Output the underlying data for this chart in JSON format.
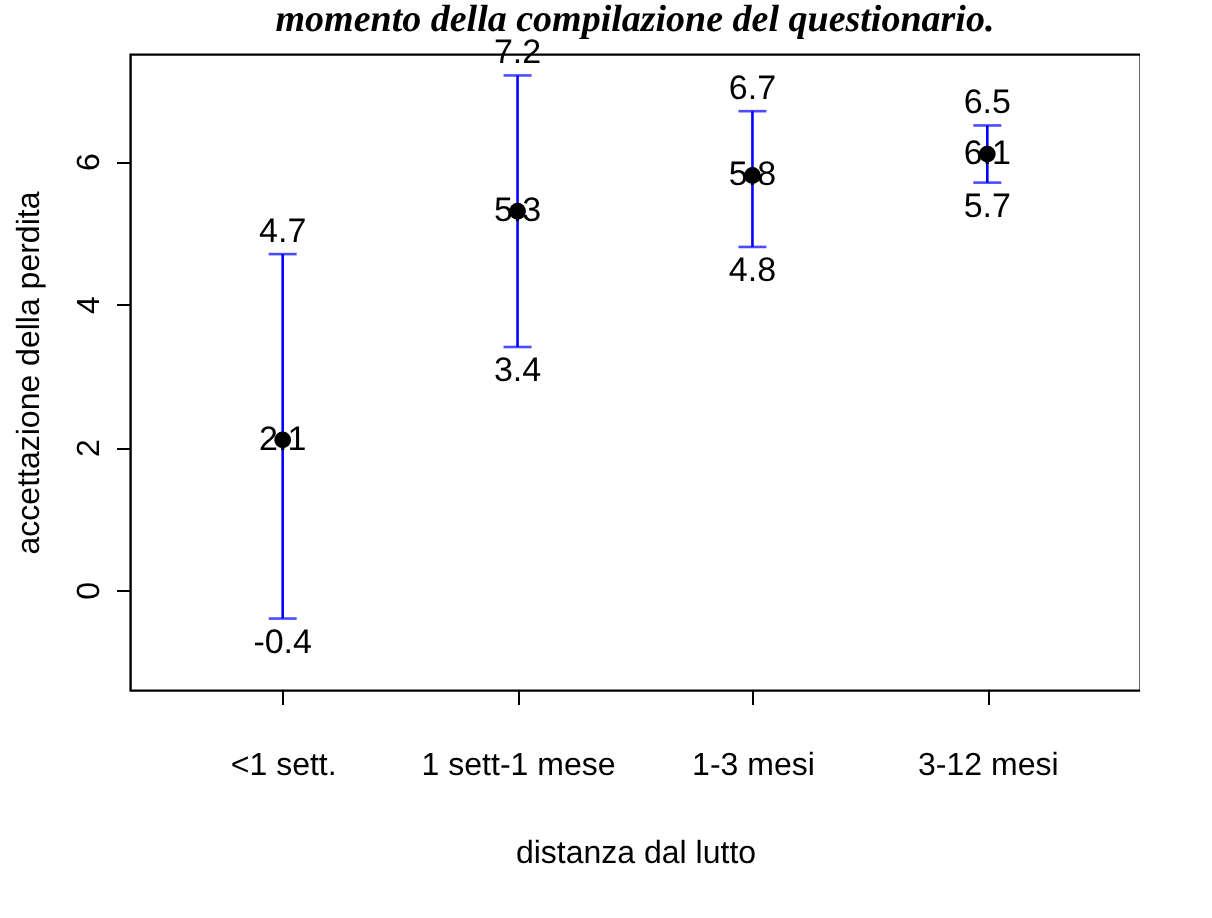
{
  "chart_data": {
    "type": "scatter",
    "title": "momento della compilazione del questionario.",
    "xlabel": "distanza dal lutto",
    "ylabel": "accettazione della perdita",
    "categories": [
      "<1 sett.",
      "1 sett-1 mese",
      "1-3 mesi",
      "3-12 mesi"
    ],
    "values": [
      2.1,
      5.3,
      5.8,
      6.1
    ],
    "errors": [
      [
        -0.4,
        4.7
      ],
      [
        3.4,
        7.2
      ],
      [
        4.8,
        6.7
      ],
      [
        5.7,
        6.5
      ]
    ],
    "color": "#000000",
    "marker": "circle",
    "data_labels": true,
    "annotations": [
      {
        "text": "4.7",
        "x": "<1 sett.",
        "y": 4.7
      },
      {
        "text": "-0.4",
        "x": "<1 sett.",
        "y": -0.4
      },
      {
        "text": "7.2",
        "x": "1 sett-1 mese",
        "y": 7.2
      },
      {
        "text": "3.4",
        "x": "1 sett-1 mese",
        "y": 3.4
      },
      {
        "text": "6.7",
        "x": "1-3 mesi",
        "y": 6.7
      },
      {
        "text": "4.8",
        "x": "1-3 mesi",
        "y": 4.8
      },
      {
        "text": "6.5",
        "x": "3-12 mesi",
        "y": 6.5
      },
      {
        "text": "5.7",
        "x": "3-12 mesi",
        "y": 5.7
      }
    ],
    "ylim": [
      -1.4,
      7.5
    ],
    "yticks": [
      0,
      2,
      4,
      6
    ],
    "grid": false
  }
}
